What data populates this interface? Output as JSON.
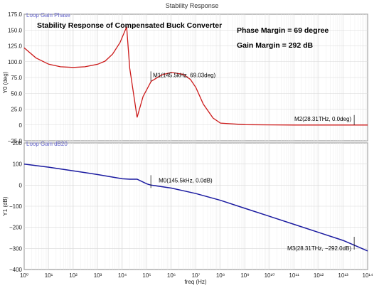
{
  "window": {
    "title": "Stability Response"
  },
  "colors": {
    "phase": "#cc1a1a",
    "gain": "#1a1aa0",
    "panel_label": "#6666cc",
    "grid": "#d8d8d8",
    "grid_minor": "#eeeeee"
  },
  "chart_data": [
    {
      "type": "line",
      "panel": "top",
      "legend": "Loop Gain Phase",
      "title": "Stability Response of Compensated Buck Converter",
      "annotations": [
        "Phase Margin = 69 degree",
        "Gain Margin = 292 dB"
      ],
      "ylabel": "Y0 (deg)",
      "xscale": "log",
      "xlim": [
        1,
        100000000000000.0
      ],
      "ylim": [
        -25,
        175
      ],
      "yticks": [
        -25,
        0,
        25,
        50,
        75,
        100,
        125,
        150,
        175
      ],
      "ytick_labels": [
        "−25.0",
        "0",
        "25.0",
        "50.0",
        "75.0",
        "100.0",
        "125.0",
        "150.0",
        "175.0"
      ],
      "series": [
        {
          "x": [
            1,
            3,
            10,
            30,
            100,
            300,
            1000,
            2000,
            4000,
            8000,
            15000,
            20000,
            40000,
            70000,
            150000,
            400000,
            1000000,
            3000000,
            6000000,
            10000000,
            20000000,
            50000000,
            100000000,
            1000000000,
            10000000000,
            100000000000,
            1000000000000.0,
            10000000000000.0,
            100000000000000.0
          ],
          "y": [
            122,
            106,
            96,
            92,
            91,
            92,
            96,
            101,
            112,
            130,
            155,
            90,
            12,
            45,
            69,
            79,
            83,
            80,
            72,
            59,
            33,
            11,
            3,
            0.5,
            0.2,
            0,
            0,
            0,
            0
          ]
        }
      ],
      "markers": [
        {
          "name": "M1",
          "label": "M1(145.5kHz, 69.03deg)",
          "x": 145500,
          "y": 69.03
        },
        {
          "name": "M2",
          "label": "M2(28.31THz, 0.0deg)",
          "x": 28310000000000,
          "y": 0
        }
      ]
    },
    {
      "type": "line",
      "panel": "bottom",
      "legend": "Loop Gain dB20",
      "ylabel": "Y1 (dB)",
      "xlabel": "freq (Hz)",
      "xscale": "log",
      "xlim": [
        1,
        100000000000000.0
      ],
      "ylim": [
        -400,
        200
      ],
      "yticks": [
        -400,
        -300,
        -200,
        -100,
        0,
        100,
        200
      ],
      "ytick_labels": [
        "−400",
        "−300",
        "−200",
        "−100",
        "0",
        "100",
        "200"
      ],
      "xtick_labels": [
        "10⁰",
        "10¹",
        "10²",
        "10³",
        "10⁴",
        "10⁵",
        "10⁶",
        "10⁷",
        "10⁸",
        "10⁹",
        "10¹⁰",
        "10¹¹",
        "10¹²",
        "10¹³",
        "10¹⁴"
      ],
      "series": [
        {
          "x": [
            1,
            10,
            100,
            1000,
            10000,
            20000,
            40000,
            100000,
            145500,
            1000000,
            10000000,
            100000000,
            1000000000,
            10000000000,
            100000000000,
            1000000000000.0,
            10000000000000.0,
            100000000000000.0
          ],
          "y": [
            100,
            85,
            68,
            50,
            30,
            28,
            28,
            6,
            0,
            -14,
            -40,
            -72,
            -110,
            -148,
            -186,
            -224,
            -262,
            -312
          ]
        }
      ],
      "markers": [
        {
          "name": "M0",
          "label": "M0(145.5kHz, 0.0dB)",
          "x": 145500,
          "y": 0
        },
        {
          "name": "M3",
          "label": "M3(28.31THz, −292.0dB)",
          "x": 28310000000000,
          "y": -292
        }
      ]
    }
  ]
}
